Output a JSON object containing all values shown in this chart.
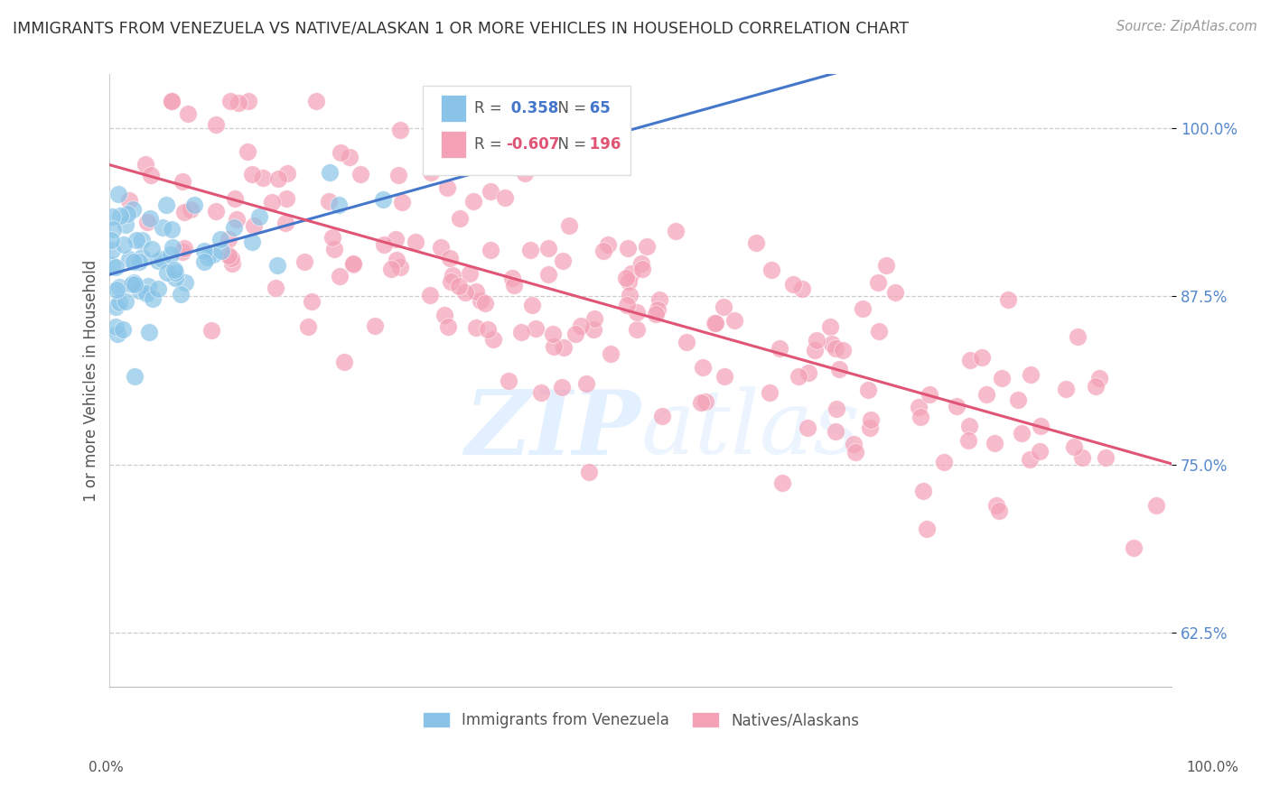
{
  "title": "IMMIGRANTS FROM VENEZUELA VS NATIVE/ALASKAN 1 OR MORE VEHICLES IN HOUSEHOLD CORRELATION CHART",
  "source": "Source: ZipAtlas.com",
  "ylabel": "1 or more Vehicles in Household",
  "yticks": [
    0.625,
    0.75,
    0.875,
    1.0
  ],
  "ytick_labels": [
    "62.5%",
    "75.0%",
    "87.5%",
    "100.0%"
  ],
  "legend_blue_label": "Immigrants from Venezuela",
  "legend_pink_label": "Natives/Alaskans",
  "R_blue": 0.358,
  "N_blue": 65,
  "R_pink": -0.607,
  "N_pink": 196,
  "blue_color": "#89C4E8",
  "pink_color": "#F4A0B5",
  "blue_line_color": "#4477CC",
  "pink_line_color": "#E05575",
  "background_color": "#FFFFFF",
  "xlim": [
    0.0,
    1.0
  ],
  "ylim": [
    0.585,
    1.04
  ]
}
